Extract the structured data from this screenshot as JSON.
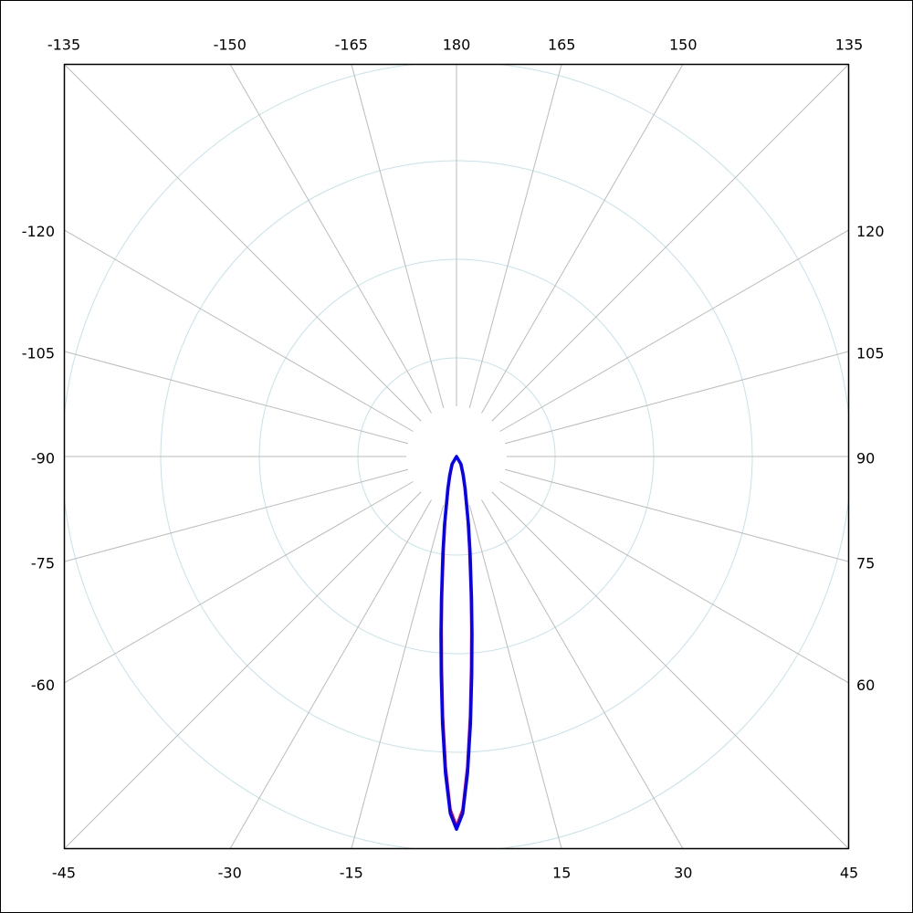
{
  "chart_data": {
    "type": "polar",
    "theta": [
      -180,
      -90,
      -30,
      -20,
      -15,
      -10,
      -8,
      -6,
      -5,
      -4,
      -3,
      -2,
      -1,
      0,
      1,
      2,
      3,
      4,
      5,
      6,
      8,
      10,
      15,
      20,
      30,
      90,
      180
    ],
    "series": [
      {
        "color": "#ff0000",
        "values": [
          0,
          0,
          8,
          18,
          32,
          66,
          94,
          140,
          174,
          214,
          264,
          315,
          358,
          375,
          358,
          315,
          264,
          214,
          174,
          140,
          94,
          66,
          32,
          18,
          8,
          0,
          0
        ]
      },
      {
        "color": "#0000ff",
        "values": [
          0,
          0,
          9,
          20,
          34,
          70,
          99,
          146,
          181,
          222,
          271,
          321,
          362,
          378,
          362,
          321,
          271,
          222,
          181,
          146,
          99,
          70,
          34,
          20,
          9,
          0,
          0
        ]
      }
    ],
    "rlim": [
      0,
      400
    ],
    "rticks": [
      100,
      200,
      300,
      400
    ],
    "angle_ticks": [
      -165,
      -150,
      -135,
      -120,
      -105,
      -90,
      -75,
      -60,
      -45,
      -30,
      -15,
      15,
      30,
      45,
      60,
      75,
      90,
      105,
      120,
      135,
      150,
      165,
      180
    ],
    "grid": true
  }
}
